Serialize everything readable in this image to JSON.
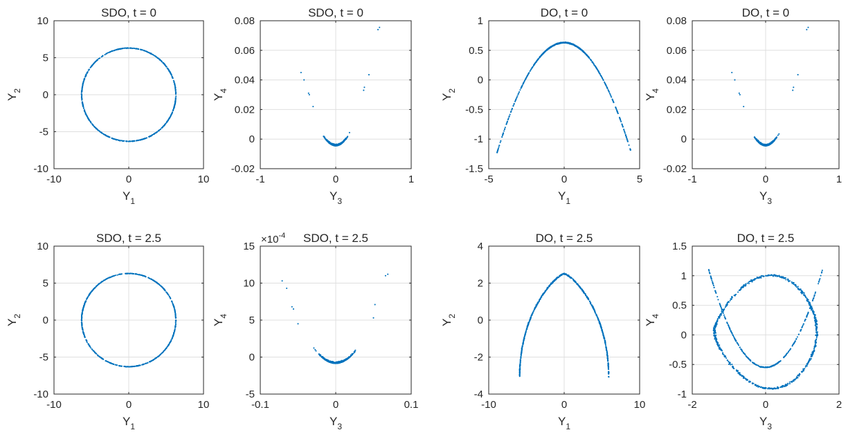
{
  "figure": {
    "colors": {
      "marker": "#0072BD",
      "grid": "#dfdfdf",
      "axis": "#262626"
    },
    "plots": [
      {
        "title": "SDO, t = 0",
        "xlabel": {
          "base": "Y",
          "sub": "1"
        },
        "ylabel": {
          "base": "Y",
          "sub": "2"
        },
        "xlim": [
          -10,
          10
        ],
        "ylim": [
          -10,
          10
        ],
        "xticks": [
          -10,
          0,
          10
        ],
        "yticks": [
          -10,
          -5,
          0,
          5,
          10
        ],
        "xtick_labels": [
          "-10",
          "0",
          "10"
        ],
        "ytick_labels": [
          "-10",
          "-5",
          "0",
          "5",
          "10"
        ],
        "exponent_label": "",
        "shape": {
          "kind": "circle",
          "cx": 0,
          "cy": 0,
          "r": 6.3
        }
      },
      {
        "title": "SDO, t = 0",
        "xlabel": {
          "base": "Y",
          "sub": "3"
        },
        "ylabel": {
          "base": "Y",
          "sub": "4"
        },
        "xlim": [
          -1,
          1
        ],
        "ylim": [
          -0.02,
          0.08
        ],
        "xticks": [
          -1,
          0,
          1
        ],
        "yticks": [
          -0.02,
          0,
          0.02,
          0.04,
          0.06,
          0.08
        ],
        "xtick_labels": [
          "-1",
          "0",
          "1"
        ],
        "ytick_labels": [
          "-0.02",
          "0",
          "0.02",
          "0.04",
          "0.06",
          "0.08"
        ],
        "exponent_label": "",
        "shape": {
          "kind": "parabola",
          "x0": 0,
          "y0": -0.0045,
          "a": 0.24,
          "xmin": -0.3,
          "xmax": 0.3
        },
        "outliers": [
          [
            -0.46,
            0.045
          ],
          [
            -0.42,
            0.04
          ],
          [
            -0.36,
            0.031
          ],
          [
            -0.35,
            0.03
          ],
          [
            -0.3,
            0.022
          ],
          [
            0.37,
            0.033
          ],
          [
            0.38,
            0.035
          ],
          [
            0.44,
            0.0435
          ],
          [
            0.56,
            0.074
          ],
          [
            0.58,
            0.0755
          ]
        ]
      },
      {
        "title": "DO, t = 0",
        "xlabel": {
          "base": "Y",
          "sub": "1"
        },
        "ylabel": {
          "base": "Y",
          "sub": "2"
        },
        "xlim": [
          -5,
          5
        ],
        "ylim": [
          -1.5,
          1
        ],
        "xticks": [
          -5,
          0,
          5
        ],
        "yticks": [
          -1.5,
          -1,
          -0.5,
          0,
          0.5,
          1
        ],
        "xtick_labels": [
          "-5",
          "0",
          "5"
        ],
        "ytick_labels": [
          "-1.5",
          "-1",
          "-0.5",
          "0",
          "0.5",
          "1"
        ],
        "exponent_label": "",
        "shape": {
          "kind": "parabola",
          "x0": 0,
          "y0": 0.63,
          "a": -0.094,
          "xmin": -4.45,
          "xmax": 4.45
        }
      },
      {
        "title": "DO, t = 0",
        "xlabel": {
          "base": "Y",
          "sub": "3"
        },
        "ylabel": {
          "base": "Y",
          "sub": "4"
        },
        "xlim": [
          -1,
          1
        ],
        "ylim": [
          -0.02,
          0.08
        ],
        "xticks": [
          -1,
          0,
          1
        ],
        "yticks": [
          -0.02,
          0,
          0.02,
          0.04,
          0.06,
          0.08
        ],
        "xtick_labels": [
          "-1",
          "0",
          "1"
        ],
        "ytick_labels": [
          "-0.02",
          "0",
          "0.02",
          "0.04",
          "0.06",
          "0.08"
        ],
        "exponent_label": "",
        "shape": {
          "kind": "parabola",
          "x0": 0,
          "y0": -0.0045,
          "a": 0.24,
          "xmin": -0.3,
          "xmax": 0.3
        },
        "outliers": [
          [
            -0.46,
            0.045
          ],
          [
            -0.42,
            0.04
          ],
          [
            -0.36,
            0.031
          ],
          [
            -0.35,
            0.03
          ],
          [
            -0.3,
            0.022
          ],
          [
            0.37,
            0.033
          ],
          [
            0.38,
            0.035
          ],
          [
            0.44,
            0.0435
          ],
          [
            0.56,
            0.074
          ],
          [
            0.58,
            0.0755
          ]
        ]
      },
      {
        "title": "SDO, t = 2.5",
        "xlabel": {
          "base": "Y",
          "sub": "1"
        },
        "ylabel": {
          "base": "Y",
          "sub": "2"
        },
        "xlim": [
          -10,
          10
        ],
        "ylim": [
          -10,
          10
        ],
        "xticks": [
          -10,
          0,
          10
        ],
        "yticks": [
          -10,
          -5,
          0,
          5,
          10
        ],
        "xtick_labels": [
          "-10",
          "0",
          "10"
        ],
        "ytick_labels": [
          "-10",
          "-5",
          "0",
          "5",
          "10"
        ],
        "exponent_label": "",
        "shape": {
          "kind": "circle",
          "cx": 0,
          "cy": 0,
          "r": 6.3
        }
      },
      {
        "title": "SDO, t = 2.5",
        "xlabel": {
          "base": "Y",
          "sub": "3"
        },
        "ylabel": {
          "base": "Y",
          "sub": "4"
        },
        "xlim": [
          -0.1,
          0.1
        ],
        "ylim": [
          -5,
          15
        ],
        "xticks": [
          -0.1,
          0,
          0.1
        ],
        "yticks": [
          -5,
          0,
          5,
          10,
          15
        ],
        "xtick_labels": [
          "-0.1",
          "0",
          "0.1"
        ],
        "ytick_labels": [
          "-5",
          "0",
          "5",
          "10",
          "15"
        ],
        "exponent_label": "×10",
        "exponent_power": "-4",
        "shape": {
          "kind": "parabola",
          "x0": 0,
          "y0": -0.85,
          "a": 2400,
          "xmin": -0.048,
          "xmax": 0.048
        },
        "outliers": [
          [
            -0.071,
            10.3
          ],
          [
            -0.065,
            9.3
          ],
          [
            -0.058,
            6.8
          ],
          [
            -0.056,
            6.5
          ],
          [
            -0.05,
            4.5
          ],
          [
            0.05,
            5.3
          ],
          [
            0.052,
            7.1
          ],
          [
            0.066,
            11.0
          ],
          [
            0.069,
            11.2
          ]
        ]
      },
      {
        "title": "DO, t = 2.5",
        "xlabel": {
          "base": "Y",
          "sub": "1"
        },
        "ylabel": {
          "base": "Y",
          "sub": "2"
        },
        "xlim": [
          -10,
          10
        ],
        "ylim": [
          -4,
          4
        ],
        "xticks": [
          -10,
          0,
          10
        ],
        "yticks": [
          -4,
          -2,
          0,
          2,
          4
        ],
        "xtick_labels": [
          "-10",
          "0",
          "10"
        ],
        "ytick_labels": [
          "-4",
          "-2",
          "0",
          "2",
          "4"
        ],
        "exponent_label": "",
        "shape": {
          "kind": "arch",
          "ytop": 2.5,
          "ybottom": -3.1,
          "halfwidth": 5.9
        }
      },
      {
        "title": "DO, t = 2.5",
        "xlabel": {
          "base": "Y",
          "sub": "3"
        },
        "ylabel": {
          "base": "Y",
          "sub": "4"
        },
        "xlim": [
          -2,
          2
        ],
        "ylim": [
          -1,
          1.5
        ],
        "xticks": [
          -2,
          0,
          2
        ],
        "yticks": [
          -1,
          -0.5,
          0,
          0.5,
          1,
          1.5
        ],
        "xtick_labels": [
          "-2",
          "0",
          "2"
        ],
        "ytick_labels": [
          "-1",
          "-0.5",
          "0",
          "0.5",
          "1",
          "1.5"
        ],
        "exponent_label": "",
        "shape": {
          "kind": "crossing",
          "xamp": 1.55,
          "top": 1.0,
          "bottom": -0.9,
          "curve_y0": -0.55,
          "curve_amp": 1.65
        }
      }
    ]
  },
  "chart_data": [
    {
      "type": "scatter",
      "title": "SDO, t = 0",
      "xlabel": "Y1",
      "ylabel": "Y2",
      "xlim": [
        -10,
        10
      ],
      "ylim": [
        -10,
        10
      ],
      "description_values": {
        "shape": "circle",
        "center": [
          0,
          0
        ],
        "radius": 6.3
      }
    },
    {
      "type": "scatter",
      "title": "SDO, t = 0",
      "xlabel": "Y3",
      "ylabel": "Y4",
      "xlim": [
        -1,
        1
      ],
      "ylim": [
        -0.02,
        0.08
      ],
      "description_values": {
        "shape": "parabola",
        "vertex": [
          0,
          -0.0045
        ]
      }
    },
    {
      "type": "scatter",
      "title": "DO, t = 0",
      "xlabel": "Y1",
      "ylabel": "Y2",
      "xlim": [
        -5,
        5
      ],
      "ylim": [
        -1.5,
        1
      ],
      "description_values": {
        "shape": "inverted parabola",
        "vertex": [
          0,
          0.63
        ],
        "x_range": [
          -4.45,
          4.45
        ]
      }
    },
    {
      "type": "scatter",
      "title": "DO, t = 0",
      "xlabel": "Y3",
      "ylabel": "Y4",
      "xlim": [
        -1,
        1
      ],
      "ylim": [
        -0.02,
        0.08
      ],
      "description_values": {
        "shape": "parabola",
        "vertex": [
          0,
          -0.0045
        ]
      }
    },
    {
      "type": "scatter",
      "title": "SDO, t = 2.5",
      "xlabel": "Y1",
      "ylabel": "Y2",
      "xlim": [
        -10,
        10
      ],
      "ylim": [
        -10,
        10
      ],
      "description_values": {
        "shape": "circle",
        "center": [
          0,
          0
        ],
        "radius": 6.3
      }
    },
    {
      "type": "scatter",
      "title": "SDO, t = 2.5",
      "xlabel": "Y3",
      "ylabel": "Y4",
      "xlim": [
        -0.1,
        0.1
      ],
      "ylim": [
        -5,
        15
      ],
      "y_scale_factor": "1e-4",
      "description_values": {
        "shape": "parabola",
        "vertex": [
          0,
          -0.85
        ]
      }
    },
    {
      "type": "scatter",
      "title": "DO, t = 2.5",
      "xlabel": "Y1",
      "ylabel": "Y2",
      "xlim": [
        -10,
        10
      ],
      "ylim": [
        -4,
        4
      ],
      "description_values": {
        "shape": "arch",
        "top": [
          0,
          2.5
        ],
        "ends": [
          [
            -5.9,
            -3.1
          ],
          [
            5.9,
            -2.75
          ]
        ]
      }
    },
    {
      "type": "scatter",
      "title": "DO, t = 2.5",
      "xlabel": "Y3",
      "ylabel": "Y4",
      "xlim": [
        -2,
        2
      ],
      "ylim": [
        -1,
        1.5
      ],
      "description_values": {
        "shape": "closed loop plus crossing curve",
        "x_range": [
          -1.55,
          1.55
        ],
        "y_range": [
          -0.9,
          1.1
        ]
      }
    }
  ]
}
